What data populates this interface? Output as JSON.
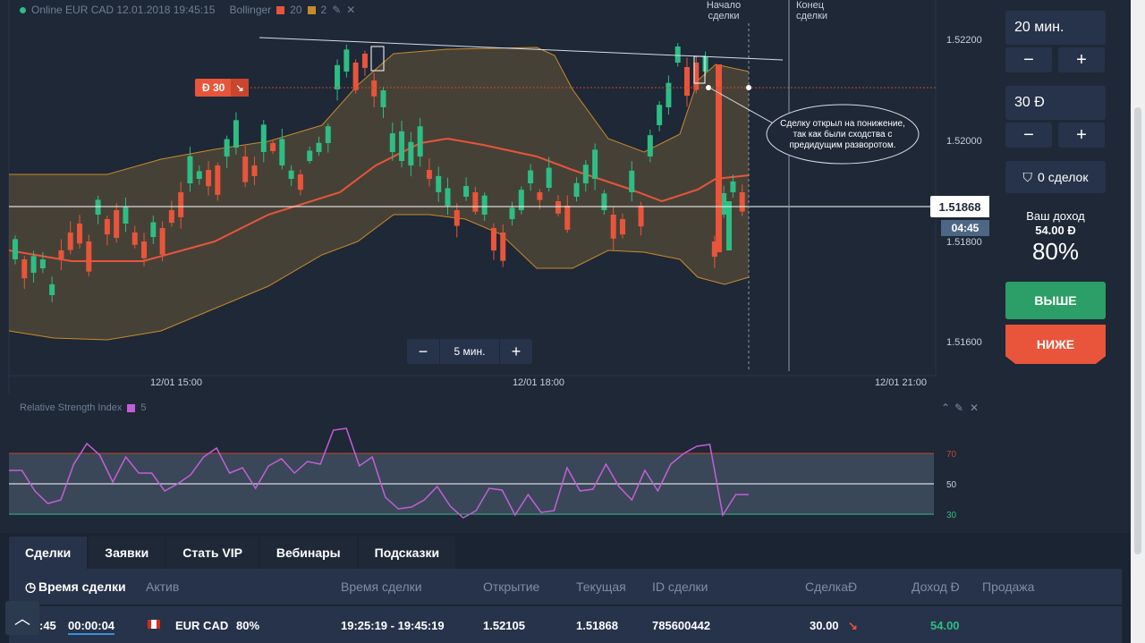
{
  "header": {
    "asset_line": "Online EUR CAD 12.01.2018 19:45:15",
    "indicator": "Bollinger",
    "period": "20",
    "dev": "2"
  },
  "chart": {
    "price_ticks": [
      "1.52200",
      "1.52000",
      "1.51800",
      "1.51600"
    ],
    "time_ticks": [
      "12/01 15:00",
      "12/01 18:00",
      "12/01 21:00"
    ],
    "current_price": "1.51868",
    "countdown": "04:45",
    "deal_amount": "Ð 30",
    "deal_start_label": "Начало\nсделки",
    "deal_end_label": "Конец\nсделки",
    "annotation": "Сделку открыл на понижение, так как были сходства с предидущим разворотом.",
    "annotation_lines": [
      "Сделку открыл на понижение,",
      "так как были сходства с",
      "предидущим разворотом."
    ],
    "zoom_value": "5 мин.",
    "zoom_minus": "−",
    "zoom_plus": "+"
  },
  "rsi": {
    "label": "Relative Strength Index",
    "period": "5",
    "levels": [
      "70",
      "50",
      "30"
    ]
  },
  "right_panel": {
    "time_value": "20 мин.",
    "amount_value": "30 Ð",
    "minus": "−",
    "plus": "+",
    "deals": "0 сделок",
    "income_label": "Ваш доход",
    "income_value": "54.00 Ð",
    "percent": "80%",
    "high": "ВЫШЕ",
    "low": "НИЖЕ"
  },
  "bottom": {
    "tabs": [
      "Сделки",
      "Заявки",
      "Стать VIP",
      "Вебинары",
      "Подсказки"
    ],
    "columns": [
      "Время сделки",
      "Актив",
      "Время сделки",
      "Открытие",
      "Текущая",
      "ID сделки",
      "СделкаÐ",
      "Доход Ð",
      "Продажа"
    ],
    "row": {
      "time_left_a": ":45",
      "time_left_b": "00:00:04",
      "asset": "EUR CAD",
      "asset_pct": "80%",
      "deal_time": "19:25:19 - 19:45:19",
      "open": "1.52105",
      "current": "1.51868",
      "id": "785600442",
      "deal": "30.00",
      "income": "54.00"
    }
  },
  "colors": {
    "up": "#2ebd85",
    "down": "#e8553a",
    "band": "#c98a2a",
    "rsi": "#c25fd8"
  }
}
